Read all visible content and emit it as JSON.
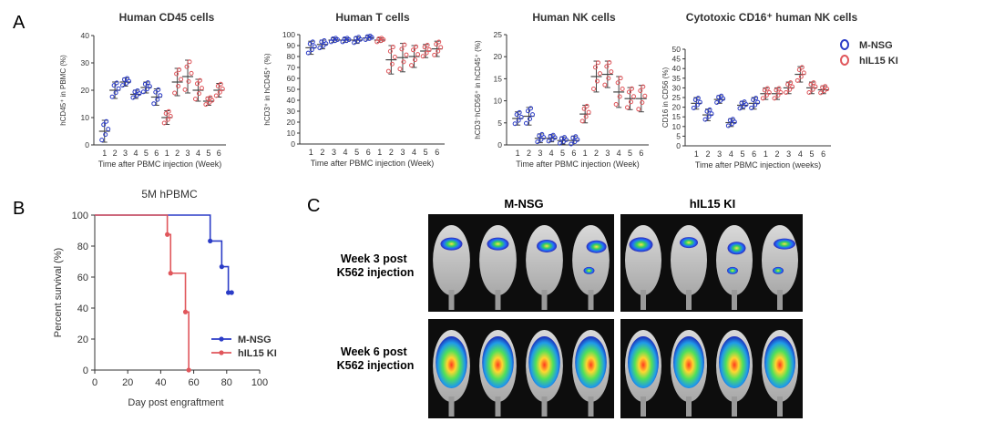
{
  "panels": {
    "a": "A",
    "b": "B",
    "c": "C"
  },
  "legend": {
    "mnsg": "M-NSG",
    "hil15": "hIL15 KI",
    "mnsg_color": "#2b3cc7",
    "hil15_color": "#e0565b"
  },
  "chart_data": [
    {
      "type": "scatter",
      "title": "Human CD45 cells",
      "ylabel": "hCD45⁺ in PBMC (%)",
      "xlabel": "Time after PBMC injection (Week)",
      "categories": [
        "1",
        "2",
        "3",
        "4",
        "5",
        "6"
      ],
      "ylim": [
        0,
        40
      ],
      "yticks": [
        0,
        10,
        20,
        30,
        40
      ],
      "series": [
        {
          "name": "M-NSG",
          "mean": [
            5,
            20,
            23,
            18.5,
            21,
            17.5
          ],
          "sd": [
            4,
            3,
            1.5,
            1.5,
            2,
            3
          ]
        },
        {
          "name": "hIL15 KI",
          "mean": [
            10,
            23,
            25,
            20,
            16,
            20
          ],
          "sd": [
            2.5,
            5,
            6,
            4,
            1.5,
            2.5
          ]
        }
      ]
    },
    {
      "type": "scatter",
      "title": "Human T cells",
      "ylabel": "hCD3⁺ in hCD45⁺ (%)",
      "xlabel": "Time after PBMC injection (Week)",
      "categories": [
        "1",
        "2",
        "3",
        "4",
        "5",
        "6"
      ],
      "ylim": [
        0,
        100
      ],
      "yticks": [
        0,
        10,
        20,
        30,
        40,
        50,
        60,
        70,
        80,
        90,
        100
      ],
      "series": [
        {
          "name": "M-NSG",
          "mean": [
            88,
            91,
            95,
            95,
            95,
            97
          ],
          "sd": [
            6,
            4,
            2,
            2,
            3,
            2
          ]
        },
        {
          "name": "hIL15 KI",
          "mean": [
            95,
            77,
            79,
            80,
            85,
            87
          ],
          "sd": [
            2,
            13,
            13,
            10,
            6,
            7
          ]
        }
      ]
    },
    {
      "type": "scatter",
      "title": "Human NK cells",
      "ylabel": "hCD3⁻hCD56⁺ in hCD45⁺ (%)",
      "xlabel": "Time after PBMC injection (Week)",
      "categories": [
        "1",
        "2",
        "3",
        "4",
        "5",
        "6"
      ],
      "ylim": [
        0,
        25
      ],
      "yticks": [
        0,
        5,
        10,
        15,
        20,
        25
      ],
      "series": [
        {
          "name": "M-NSG",
          "mean": [
            6,
            6.5,
            1.5,
            1.5,
            1,
            1
          ],
          "sd": [
            1.5,
            2,
            1,
            0.8,
            0.8,
            1
          ]
        },
        {
          "name": "hIL15 KI",
          "mean": [
            7,
            15.5,
            16,
            12,
            10.5,
            10.5
          ],
          "sd": [
            2,
            3.5,
            3,
            3.5,
            2.5,
            3
          ]
        }
      ]
    },
    {
      "type": "scatter",
      "title": "Cytotoxic CD16⁺ human NK cells",
      "ylabel": "CD16 in CD56 (%)",
      "xlabel": "Time after PBMC injection (weeks)",
      "categories": [
        "1",
        "2",
        "3",
        "4",
        "5",
        "6"
      ],
      "ylim": [
        0,
        50
      ],
      "yticks": [
        0,
        5,
        10,
        15,
        20,
        25,
        30,
        35,
        40,
        45,
        50
      ],
      "series": [
        {
          "name": "M-NSG",
          "mean": [
            22,
            16,
            24,
            12,
            21,
            22
          ],
          "sd": [
            3,
            3,
            2,
            2,
            2,
            3
          ]
        },
        {
          "name": "hIL15 KI",
          "mean": [
            27,
            27,
            30,
            37,
            30,
            29
          ],
          "sd": [
            3,
            3,
            3,
            4,
            3,
            2
          ]
        }
      ]
    },
    {
      "type": "line",
      "title": "5M hPBMC",
      "xlabel": "Day post engraftment",
      "ylabel": "Percent survival (%)",
      "xlim": [
        0,
        100
      ],
      "ylim": [
        0,
        100
      ],
      "xticks": [
        0,
        20,
        40,
        60,
        80,
        100
      ],
      "yticks": [
        0,
        20,
        40,
        60,
        80,
        100
      ],
      "series": [
        {
          "name": "M-NSG",
          "x": [
            0,
            70,
            70,
            77,
            77,
            81,
            81,
            83
          ],
          "y": [
            100,
            100,
            83.3,
            83.3,
            66.7,
            66.7,
            50,
            50
          ],
          "markers": [
            [
              70,
              83.3
            ],
            [
              77,
              66.7
            ],
            [
              81,
              50
            ],
            [
              83,
              50
            ]
          ]
        },
        {
          "name": "hIL15 KI",
          "x": [
            0,
            44,
            44,
            46,
            46,
            55,
            55,
            57,
            57
          ],
          "y": [
            100,
            100,
            87.5,
            87.5,
            62.5,
            62.5,
            37.5,
            37.5,
            0
          ],
          "markers": [
            [
              44,
              87.5
            ],
            [
              46,
              62.5
            ],
            [
              55,
              37.5
            ],
            [
              57,
              0
            ]
          ]
        }
      ]
    }
  ],
  "imaging": {
    "col1": "M-NSG",
    "col2": "hIL15 KI",
    "row1": "Week 3 post\nK562 injection",
    "row2": "Week 6 post\nK562 injection",
    "row1_line1": "Week 3 post",
    "row1_line2": "K562 injection",
    "row2_line1": "Week 6 post",
    "row2_line2": "K562 injection"
  }
}
